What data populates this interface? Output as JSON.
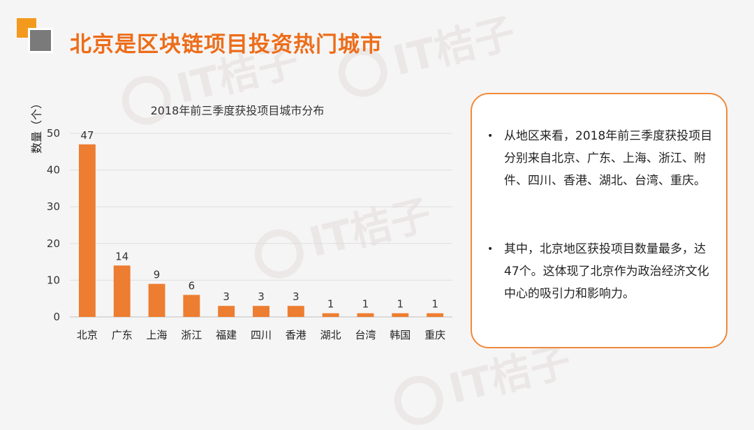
{
  "header": {
    "title": "北京是区块链项目投资热门城市"
  },
  "watermark_text": "IT桔子",
  "chart_data": {
    "type": "bar",
    "title": "2018年前三季度获投项目城市分布",
    "xlabel": "",
    "ylabel": "数量（个）",
    "categories": [
      "北京",
      "广东",
      "上海",
      "浙江",
      "福建",
      "四川",
      "香港",
      "湖北",
      "台湾",
      "韩国",
      "重庆"
    ],
    "values": [
      47,
      14,
      9,
      6,
      3,
      3,
      3,
      1,
      1,
      1,
      1
    ],
    "ylim": [
      0,
      50
    ],
    "yticks": [
      0,
      10,
      20,
      30,
      40,
      50
    ],
    "grid": true,
    "bar_color": "#ed7d31",
    "data_labels": true
  },
  "info": {
    "bullets": [
      "从地区来看，2018年前三季度获投项目分别来自北京、广东、上海、浙江、附件、四川、香港、湖北、台湾、重庆。",
      "其中，北京地区获投项目数量最多，达47个。这体现了北京作为政治经济文化中心的吸引力和影响力。"
    ],
    "bullet_symbol": "•",
    "border_color": "#ef8a3c"
  },
  "colors": {
    "title": "#ec6d1a",
    "logo_orange": "#f39a1e",
    "logo_gray": "#7a7a7a"
  }
}
